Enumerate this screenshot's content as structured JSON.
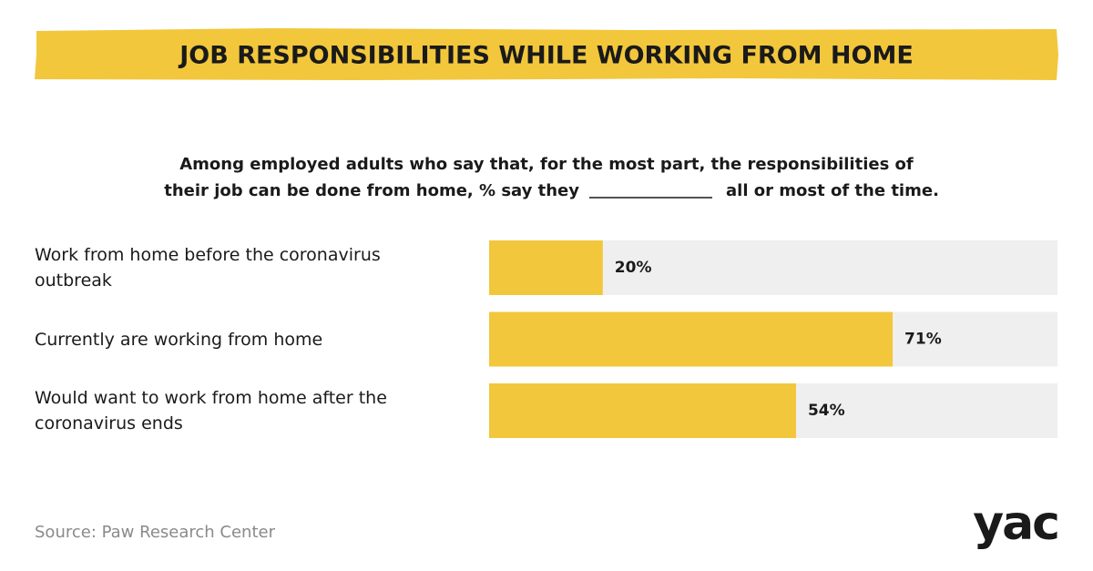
{
  "chart_data": {
    "type": "bar",
    "orientation": "horizontal",
    "title": "JOB RESPONSIBILITIES WHILE WORKING FROM HOME",
    "subtitle_line1": "Among employed adults who say that, for the most part, the responsibilities of",
    "subtitle_line2_start": "their job can be done from home, % say they",
    "subtitle_line2_end": "all or most of the time.",
    "categories": [
      "Work from home before the coronavirus outbreak",
      "Currently are working from home",
      "Would want to work from home after the coronavirus ends"
    ],
    "values": [
      20,
      71,
      54
    ],
    "value_labels": [
      "20%",
      "71%",
      "54%"
    ],
    "color": "#f2c73c",
    "track_color": "#efefef",
    "xlim": [
      0,
      100
    ],
    "source": "Source: Paw Research Center",
    "logo": "yac"
  }
}
